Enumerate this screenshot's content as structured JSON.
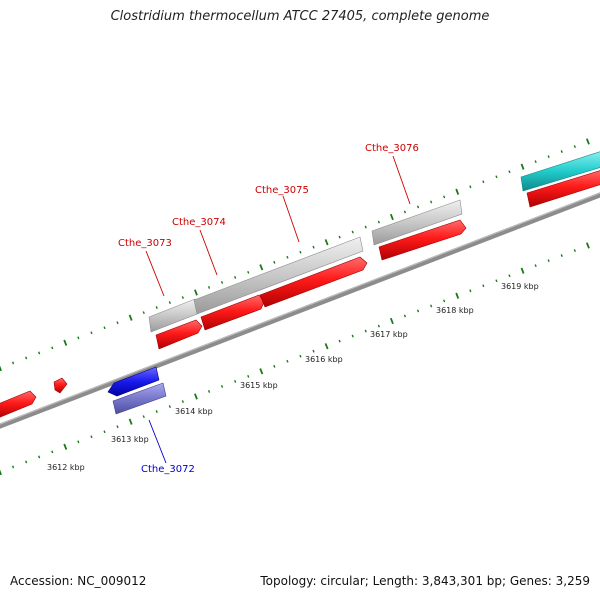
{
  "title": "Clostridium thermocellum ATCC 27405, complete genome",
  "footer": {
    "accession": "Accession: NC_009012",
    "summary": "Topology: circular; Length: 3,843,301 bp; Genes: 3,259"
  },
  "colors": {
    "red": "#ff1a1a",
    "grey": "#c8c8c8",
    "blue": "#1a1aee",
    "slate": "#7777cc",
    "cyan": "#22cccc",
    "green_ticks": "#1a7a1a",
    "backbone": "#8c8c8c",
    "label_red": "#cc0000",
    "label_blue": "#0000cc"
  },
  "kbp_labels": [
    "3612 kbp",
    "3613 kbp",
    "3614 kbp",
    "3615 kbp",
    "3616 kbp",
    "3617 kbp",
    "3618 kbp",
    "3619 kbp"
  ],
  "gene_labels": {
    "cthe_3072": "Cthe_3072",
    "cthe_3073": "Cthe_3073",
    "cthe_3074": "Cthe_3074",
    "cthe_3075": "Cthe_3075",
    "cthe_3076": "Cthe_3076"
  }
}
